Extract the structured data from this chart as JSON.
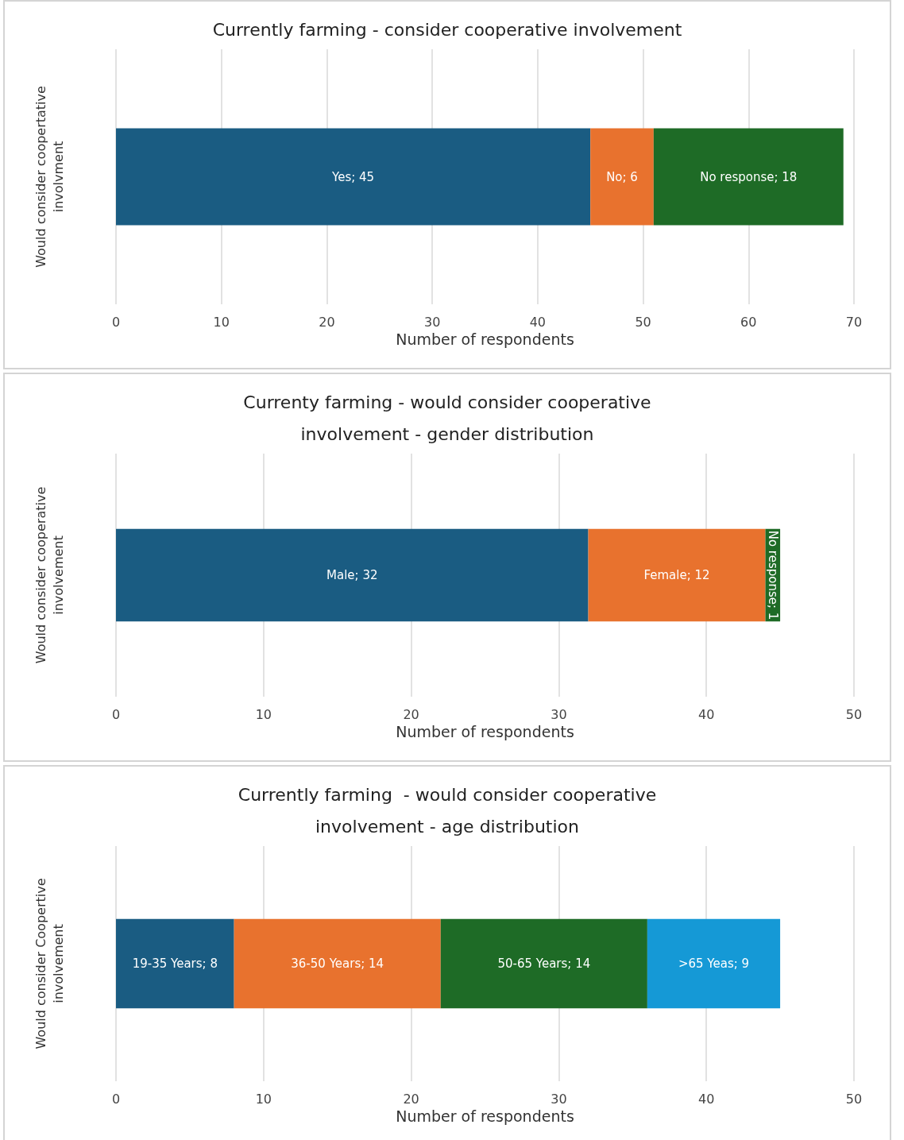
{
  "chart_data": [
    {
      "type": "bar",
      "orientation": "horizontal",
      "stacked": true,
      "title": "Currently farming - consider cooperative involvement",
      "xlabel": "Number of respondents",
      "ylabel": "Would consider coopertative involvment",
      "categories": [
        null
      ],
      "series": [
        {
          "color": "#1a5c82",
          "values": [
            45
          ],
          "value_labels": [
            "Yes; 45"
          ]
        },
        {
          "color": "#e8722e",
          "values": [
            6
          ],
          "value_labels": [
            "No; 6"
          ]
        },
        {
          "color": "#1e6b26",
          "values": [
            18
          ],
          "value_labels": [
            "No response; 18"
          ]
        }
      ],
      "xlim": [
        0,
        70
      ],
      "xticks": [
        0,
        10,
        20,
        30,
        40,
        50,
        60,
        70
      ],
      "grid": "x"
    },
    {
      "type": "bar",
      "orientation": "horizontal",
      "stacked": true,
      "title": "Currenty farming - would consider cooperative involvement - gender distribution",
      "xlabel": "Number of respondents",
      "ylabel": "Would consider cooperative involvement",
      "categories": [
        null
      ],
      "series": [
        {
          "color": "#1a5c82",
          "values": [
            32
          ],
          "value_labels": [
            "Male; 32"
          ]
        },
        {
          "color": "#e8722e",
          "values": [
            12
          ],
          "value_labels": [
            "Female; 12"
          ]
        },
        {
          "color": "#1e6b26",
          "values": [
            1
          ],
          "value_labels": [
            "No response; 1"
          ]
        }
      ],
      "xlim": [
        0,
        50
      ],
      "xticks": [
        0,
        10,
        20,
        30,
        40,
        50
      ],
      "grid": "x"
    },
    {
      "type": "bar",
      "orientation": "horizontal",
      "stacked": true,
      "title": "Currently farming  - would consider cooperative involvement - age distribution",
      "xlabel": "Number of respondents",
      "ylabel": "Would consider Coopertive involvement",
      "categories": [
        null
      ],
      "series": [
        {
          "color": "#1a5c82",
          "values": [
            8
          ],
          "value_labels": [
            "19-35 Years; 8"
          ]
        },
        {
          "color": "#e8722e",
          "values": [
            14
          ],
          "value_labels": [
            "36-50 Years; 14"
          ]
        },
        {
          "color": "#1e6b26",
          "values": [
            14
          ],
          "value_labels": [
            "50-65 Years; 14"
          ]
        },
        {
          "color": "#1599d6",
          "values": [
            9
          ],
          "value_labels": [
            ">65 Yeas; 9"
          ]
        }
      ],
      "xlim": [
        0,
        50
      ],
      "xticks": [
        0,
        10,
        20,
        30,
        40,
        50
      ],
      "grid": "x"
    }
  ]
}
